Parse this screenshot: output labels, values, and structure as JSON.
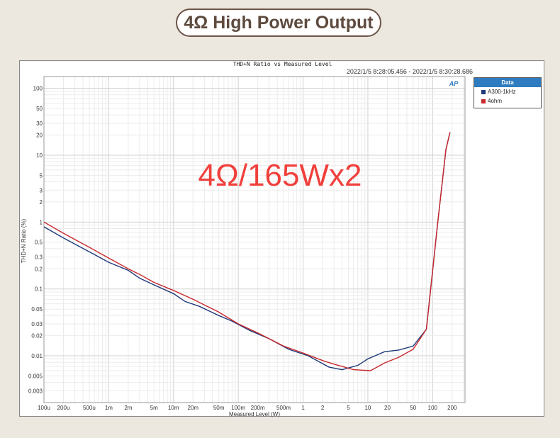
{
  "banner": {
    "title": "4Ω High Power Output"
  },
  "chart_data": {
    "type": "line",
    "title": "THD+N Ratio vs Measured Level",
    "subtitle": "2022/1/5 8:28:05.456 -   2022/1/5 8:30:28.686",
    "annotation": "4Ω/165Wx2",
    "annotation_color": "#f0403c",
    "xlabel": "Measured Level (W)",
    "ylabel": "THD+N Ratio (%)",
    "xscale": "log",
    "yscale": "log",
    "xlim": [
      0.0001,
      316
    ],
    "ylim": [
      0.002,
      150
    ],
    "grid": true,
    "legend_title": "Data",
    "legend_placement": "right",
    "xticks": [
      {
        "v": 0.0001,
        "label": "100u"
      },
      {
        "v": 0.0002,
        "label": "200u"
      },
      {
        "v": 0.0005,
        "label": "500u"
      },
      {
        "v": 0.001,
        "label": "1m"
      },
      {
        "v": 0.002,
        "label": "2m"
      },
      {
        "v": 0.005,
        "label": "5m"
      },
      {
        "v": 0.01,
        "label": "10m"
      },
      {
        "v": 0.02,
        "label": "20m"
      },
      {
        "v": 0.05,
        "label": "50m"
      },
      {
        "v": 0.1,
        "label": "100m"
      },
      {
        "v": 0.2,
        "label": "200m"
      },
      {
        "v": 0.5,
        "label": "500m"
      },
      {
        "v": 1,
        "label": "1"
      },
      {
        "v": 2,
        "label": "2"
      },
      {
        "v": 5,
        "label": "5"
      },
      {
        "v": 10,
        "label": "10"
      },
      {
        "v": 20,
        "label": "20"
      },
      {
        "v": 50,
        "label": "50"
      },
      {
        "v": 100,
        "label": "100"
      },
      {
        "v": 200,
        "label": "200"
      }
    ],
    "yticks": [
      {
        "v": 100,
        "label": "100"
      },
      {
        "v": 50,
        "label": "50"
      },
      {
        "v": 30,
        "label": "30"
      },
      {
        "v": 20,
        "label": "20"
      },
      {
        "v": 10,
        "label": "10"
      },
      {
        "v": 5,
        "label": "5"
      },
      {
        "v": 3,
        "label": "3"
      },
      {
        "v": 2,
        "label": "2"
      },
      {
        "v": 1,
        "label": "1"
      },
      {
        "v": 0.5,
        "label": "0.5"
      },
      {
        "v": 0.3,
        "label": "0.3"
      },
      {
        "v": 0.2,
        "label": "0.2"
      },
      {
        "v": 0.1,
        "label": "0.1"
      },
      {
        "v": 0.05,
        "label": "0.05"
      },
      {
        "v": 0.03,
        "label": "0.03"
      },
      {
        "v": 0.02,
        "label": "0.02"
      },
      {
        "v": 0.01,
        "label": "0.01"
      },
      {
        "v": 0.005,
        "label": "0.005"
      },
      {
        "v": 0.003,
        "label": "0.003"
      }
    ],
    "series": [
      {
        "name": "A300-1kHz",
        "color": "#1f3a7a",
        "x": [
          0.0001,
          0.0002,
          0.0005,
          0.001,
          0.002,
          0.003,
          0.005,
          0.01,
          0.015,
          0.025,
          0.05,
          0.08,
          0.15,
          0.3,
          0.6,
          1.2,
          2.5,
          4,
          7,
          10,
          18,
          30,
          50,
          80,
          120,
          160,
          185
        ],
        "y": [
          0.85,
          0.58,
          0.36,
          0.25,
          0.19,
          0.145,
          0.115,
          0.085,
          0.065,
          0.055,
          0.04,
          0.033,
          0.024,
          0.018,
          0.0125,
          0.01,
          0.0068,
          0.0062,
          0.0072,
          0.009,
          0.0115,
          0.0122,
          0.014,
          0.025,
          1.0,
          12,
          22
        ]
      },
      {
        "name": "4ohm",
        "color": "#c8282c",
        "x": [
          0.0001,
          0.0002,
          0.0005,
          0.001,
          0.002,
          0.003,
          0.005,
          0.01,
          0.02,
          0.05,
          0.1,
          0.2,
          0.5,
          1,
          2,
          3,
          6,
          11,
          18,
          30,
          50,
          80,
          120,
          160,
          185
        ],
        "y": [
          1.0,
          0.68,
          0.42,
          0.29,
          0.2,
          0.165,
          0.125,
          0.095,
          0.07,
          0.045,
          0.03,
          0.022,
          0.014,
          0.011,
          0.0085,
          0.0075,
          0.0062,
          0.006,
          0.0078,
          0.0095,
          0.0125,
          0.025,
          1.0,
          12,
          22
        ]
      }
    ]
  }
}
